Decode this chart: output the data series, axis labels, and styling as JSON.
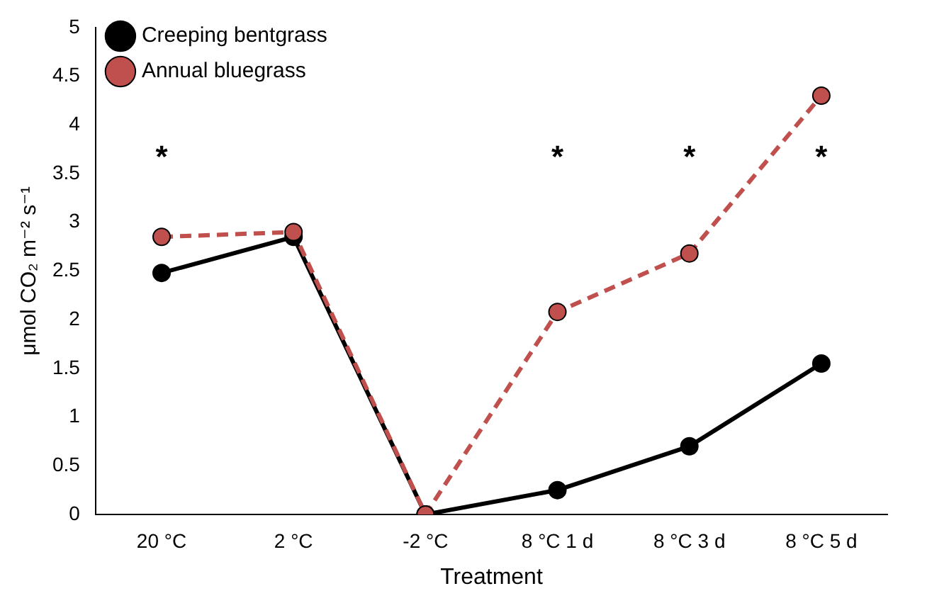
{
  "chart_data": {
    "type": "line",
    "xlabel": "Treatment",
    "ylabel": "μmol CO₂ m⁻² s⁻¹",
    "categories": [
      "20 °C",
      "2 °C",
      "-2 °C",
      "8 °C 1 d",
      "8 °C 3 d",
      "8 °C 5 d"
    ],
    "series": [
      {
        "name": "Creeping bentgrass",
        "color": "#000000",
        "values": [
          2.48,
          2.85,
          0,
          0.25,
          0.7,
          1.55
        ],
        "line_style": "solid"
      },
      {
        "name": "Annual bluegrass",
        "color": "#c0504d",
        "values": [
          2.85,
          2.9,
          0,
          2.08,
          2.68,
          4.3
        ],
        "line_style": "dashed"
      }
    ],
    "ylim": [
      0,
      5
    ],
    "yticks": [
      0,
      0.5,
      1,
      1.5,
      2,
      2.5,
      3,
      3.5,
      4,
      4.5,
      5
    ],
    "grid": false,
    "legend": "top left",
    "marker": "circle",
    "annotations": [
      "*",
      "*",
      "*",
      "*"
    ]
  }
}
